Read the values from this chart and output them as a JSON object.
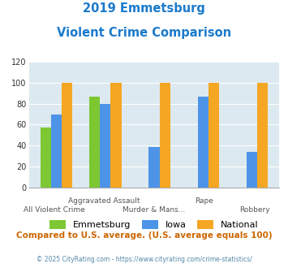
{
  "title_line1": "2019 Emmetsburg",
  "title_line2": "Violent Crime Comparison",
  "categories": [
    "All Violent Crime",
    "Aggravated Assault",
    "Murder & Mans...",
    "Rape",
    "Robbery"
  ],
  "series": {
    "Emmetsburg": [
      57,
      87,
      0,
      0,
      0
    ],
    "Iowa": [
      70,
      80,
      39,
      87,
      34
    ],
    "National": [
      100,
      100,
      100,
      100,
      100
    ]
  },
  "colors": {
    "Emmetsburg": "#7dc832",
    "Iowa": "#4d94e8",
    "National": "#f5a623"
  },
  "ylim": [
    0,
    120
  ],
  "yticks": [
    0,
    20,
    40,
    60,
    80,
    100,
    120
  ],
  "footnote1": "Compared to U.S. average. (U.S. average equals 100)",
  "footnote2": "© 2025 CityRating.com - https://www.cityrating.com/crime-statistics/",
  "bg_color": "#dde9f0",
  "title_color": "#1a7acc",
  "footnote1_color": "#cc6600",
  "footnote2_color": "#5588aa"
}
